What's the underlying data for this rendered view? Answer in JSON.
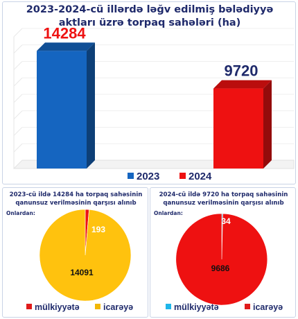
{
  "bar_chart": {
    "title_line1": "2023-2024-cü illərdə ləğv edilmiş bələdiyyə",
    "title_line2": "aktları üzrə torpaq sahələri (ha)",
    "chart_data": {
      "type": "bar",
      "categories": [
        "2023",
        "2024"
      ],
      "values": [
        14284,
        9720
      ],
      "title": "2023-2024-cü illərdə ləğv edilmiş bələdiyyə aktları üzrə torpaq sahələri (ha)",
      "xlabel": "",
      "ylabel": "",
      "ylim": [
        0,
        16000
      ],
      "colors": [
        "#1565c0",
        "#ee1111"
      ],
      "label_colors": [
        "#ee1111",
        "#1f2a6b"
      ],
      "legend": "bottom",
      "grid": true,
      "value_labels": [
        "14284",
        "9720"
      ]
    },
    "legend": [
      {
        "label": "2023",
        "color": "#1565c0"
      },
      {
        "label": "2024",
        "color": "#ee1111"
      }
    ]
  },
  "pie_left": {
    "title_line1": "2023-cü ildə 14284 ha torpaq sahəsinin",
    "title_line2": "qanunsuz verilməsinin qarşısı alınıb",
    "sub_label": "Onlardan:",
    "chart_data": {
      "type": "pie",
      "labels": [
        "mülkiyyətə",
        "icarəyə"
      ],
      "values": [
        193,
        14091
      ],
      "value_labels": [
        "193",
        "14091"
      ],
      "colors": [
        "#ee1111",
        "#ffc20e"
      ],
      "label_colors": [
        "#ffffff",
        "#111111"
      ]
    },
    "legend": [
      {
        "label": "mülkiyyətə",
        "color": "#e01b1b"
      },
      {
        "label": "icarəyə",
        "color": "#f2b705"
      }
    ]
  },
  "pie_right": {
    "title_line1": "2024-cü ildə 9720 ha torpaq sahəsinin",
    "title_line2": "qanunsuz verilməsinin qarşısı alınıb",
    "sub_label": "Onlardan:",
    "chart_data": {
      "type": "pie",
      "labels": [
        "mülkiyyətə",
        "icarəyə"
      ],
      "values": [
        34,
        9686
      ],
      "value_labels": [
        "34",
        "9686"
      ],
      "colors": [
        "#1fb6ea",
        "#ee1111"
      ],
      "label_colors": [
        "#ffffff",
        "#111111"
      ]
    },
    "legend": [
      {
        "label": "mülkiyyətə",
        "color": "#1fb6ea"
      },
      {
        "label": "icarəyə",
        "color": "#e01b1b"
      }
    ]
  }
}
